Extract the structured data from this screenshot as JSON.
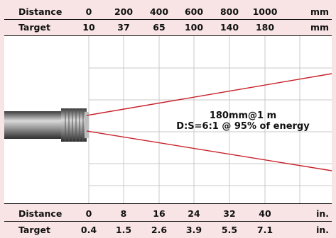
{
  "metric": {
    "distance_label": "Distance",
    "target_label": "Target",
    "unit_distance": "mm",
    "unit_target": "mm",
    "distance_values": [
      "0",
      "200",
      "400",
      "600",
      "800",
      "1000"
    ],
    "target_values": [
      "10",
      "37",
      "65",
      "100",
      "140",
      "180"
    ]
  },
  "imperial": {
    "distance_label": "Distance",
    "target_label": "Target",
    "unit_distance": "in.",
    "unit_target": "in.",
    "distance_values": [
      "0",
      "8",
      "16",
      "24",
      "32",
      "40"
    ],
    "target_values": [
      "0.4",
      "1.5",
      "2.6",
      "3.9",
      "5.5",
      "7.1"
    ]
  },
  "annotation": {
    "line1": "180mm@1 m",
    "line2": "D:S=6:1 @ 95% of energy"
  },
  "colors": {
    "background": "#f8e4e4",
    "grid_background": "#ffffff",
    "grid_line": "#c8c8c8",
    "beam": "#c8202a"
  },
  "icons": {
    "sensor": "ir-sensor-barrel-icon"
  }
}
